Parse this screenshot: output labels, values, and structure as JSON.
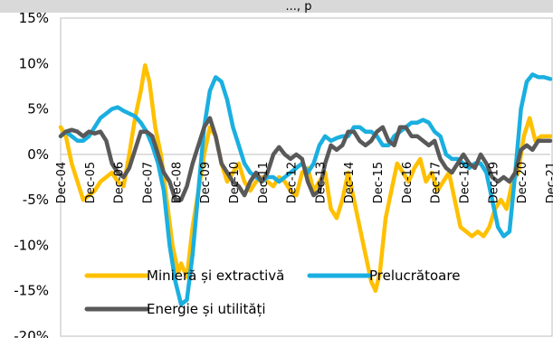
{
  "chart_data": {
    "type": "line",
    "title": "..., p",
    "ylim": [
      -20,
      15
    ],
    "y_ticks": [
      "15%",
      "10%",
      "5%",
      "0%",
      "-5%",
      "-10%",
      "-15%",
      "-20%"
    ],
    "y_tick_values": [
      15,
      10,
      5,
      0,
      -5,
      -10,
      -15,
      -20
    ],
    "x_tick_labels": [
      "Dec-04",
      "Dec-05",
      "Dec-06",
      "Dec-07",
      "Dec-08",
      "Dec-09",
      "Dec-10",
      "Dec-11",
      "Dec-12",
      "Dec-13",
      "Dec-14",
      "Dec-15",
      "Dec-16",
      "Dec-17",
      "Dec-18",
      "Dec-19",
      "Dec-20",
      "Dec-21"
    ],
    "x_range": [
      2004.917,
      2021.917
    ],
    "grid": false,
    "legend_position": "bottom inside",
    "series": [
      {
        "name": "Minieră și extractivă",
        "color": "#FFC000",
        "points": [
          [
            2004.917,
            3
          ],
          [
            2005.1,
            2
          ],
          [
            2005.3,
            -1
          ],
          [
            2005.5,
            -3
          ],
          [
            2005.7,
            -5
          ],
          [
            2005.9,
            -4.5
          ],
          [
            2006.1,
            -4
          ],
          [
            2006.3,
            -3
          ],
          [
            2006.5,
            -2.5
          ],
          [
            2006.7,
            -2
          ],
          [
            2006.9,
            -3
          ],
          [
            2007.1,
            -3.5
          ],
          [
            2007.3,
            0
          ],
          [
            2007.5,
            4
          ],
          [
            2007.7,
            7
          ],
          [
            2007.85,
            9.8
          ],
          [
            2008.0,
            8
          ],
          [
            2008.2,
            3
          ],
          [
            2008.4,
            0
          ],
          [
            2008.6,
            -5
          ],
          [
            2008.8,
            -10
          ],
          [
            2009.0,
            -13
          ],
          [
            2009.1,
            -12
          ],
          [
            2009.3,
            -13.5
          ],
          [
            2009.5,
            -8
          ],
          [
            2009.7,
            -4
          ],
          [
            2009.9,
            0
          ],
          [
            2010.1,
            3
          ],
          [
            2010.3,
            2
          ],
          [
            2010.5,
            -1
          ],
          [
            2010.7,
            -3
          ],
          [
            2010.9,
            -2
          ],
          [
            2011.1,
            -1
          ],
          [
            2011.3,
            -3
          ],
          [
            2011.5,
            -4
          ],
          [
            2011.7,
            -3
          ],
          [
            2011.9,
            -2.5
          ],
          [
            2012.1,
            -3
          ],
          [
            2012.3,
            -3.5
          ],
          [
            2012.5,
            -2.5
          ],
          [
            2012.7,
            -3
          ],
          [
            2012.9,
            -4
          ],
          [
            2013.1,
            -4.5
          ],
          [
            2013.3,
            -2
          ],
          [
            2013.5,
            -1.5
          ],
          [
            2013.7,
            -4
          ],
          [
            2013.9,
            -3
          ],
          [
            2014.1,
            -2
          ],
          [
            2014.3,
            -6
          ],
          [
            2014.5,
            -7
          ],
          [
            2014.7,
            -5
          ],
          [
            2014.9,
            -2
          ],
          [
            2015.1,
            -5
          ],
          [
            2015.3,
            -8
          ],
          [
            2015.5,
            -11
          ],
          [
            2015.7,
            -14
          ],
          [
            2015.85,
            -15
          ],
          [
            2016.0,
            -13
          ],
          [
            2016.2,
            -7
          ],
          [
            2016.4,
            -4
          ],
          [
            2016.6,
            -1
          ],
          [
            2016.8,
            -2
          ],
          [
            2017.0,
            -3
          ],
          [
            2017.2,
            -1.5
          ],
          [
            2017.4,
            -0.5
          ],
          [
            2017.6,
            -3
          ],
          [
            2017.8,
            -2
          ],
          [
            2018.0,
            -4
          ],
          [
            2018.2,
            -3
          ],
          [
            2018.4,
            -2
          ],
          [
            2018.6,
            -5
          ],
          [
            2018.8,
            -8
          ],
          [
            2019.0,
            -8.5
          ],
          [
            2019.2,
            -9
          ],
          [
            2019.4,
            -8.5
          ],
          [
            2019.6,
            -9
          ],
          [
            2019.8,
            -8
          ],
          [
            2020.0,
            -6
          ],
          [
            2020.2,
            -5
          ],
          [
            2020.4,
            -6
          ],
          [
            2020.6,
            -3
          ],
          [
            2020.8,
            -2
          ],
          [
            2021.0,
            2
          ],
          [
            2021.2,
            4
          ],
          [
            2021.4,
            1.5
          ],
          [
            2021.6,
            2
          ],
          [
            2021.917,
            2
          ]
        ]
      },
      {
        "name": "Prelucrătoare",
        "color": "#1AAFE0",
        "points": [
          [
            2004.917,
            2
          ],
          [
            2005.1,
            2.5
          ],
          [
            2005.3,
            2
          ],
          [
            2005.5,
            1.5
          ],
          [
            2005.7,
            1.5
          ],
          [
            2005.9,
            2
          ],
          [
            2006.1,
            3
          ],
          [
            2006.3,
            4
          ],
          [
            2006.5,
            4.5
          ],
          [
            2006.7,
            5
          ],
          [
            2006.9,
            5.2
          ],
          [
            2007.1,
            4.8
          ],
          [
            2007.3,
            4.5
          ],
          [
            2007.5,
            4.2
          ],
          [
            2007.7,
            3.5
          ],
          [
            2007.9,
            2.5
          ],
          [
            2008.1,
            1
          ],
          [
            2008.3,
            -1
          ],
          [
            2008.5,
            -4
          ],
          [
            2008.7,
            -10
          ],
          [
            2008.9,
            -14
          ],
          [
            2009.1,
            -16.5
          ],
          [
            2009.3,
            -16
          ],
          [
            2009.5,
            -11
          ],
          [
            2009.7,
            -4
          ],
          [
            2009.9,
            3
          ],
          [
            2010.1,
            7
          ],
          [
            2010.3,
            8.5
          ],
          [
            2010.5,
            8
          ],
          [
            2010.7,
            6
          ],
          [
            2010.9,
            3
          ],
          [
            2011.1,
            1
          ],
          [
            2011.3,
            -1
          ],
          [
            2011.5,
            -2
          ],
          [
            2011.7,
            -2.5
          ],
          [
            2011.9,
            -3
          ],
          [
            2012.1,
            -2.5
          ],
          [
            2012.3,
            -2.5
          ],
          [
            2012.5,
            -3
          ],
          [
            2012.7,
            -2.5
          ],
          [
            2012.9,
            -2
          ],
          [
            2013.1,
            -1.5
          ],
          [
            2013.3,
            -1
          ],
          [
            2013.5,
            -2
          ],
          [
            2013.7,
            -1
          ],
          [
            2013.9,
            1
          ],
          [
            2014.1,
            2
          ],
          [
            2014.3,
            1.5
          ],
          [
            2014.5,
            1.8
          ],
          [
            2014.7,
            2
          ],
          [
            2014.9,
            2
          ],
          [
            2015.1,
            3
          ],
          [
            2015.3,
            3
          ],
          [
            2015.5,
            2.5
          ],
          [
            2015.7,
            2.5
          ],
          [
            2015.9,
            2
          ],
          [
            2016.1,
            1
          ],
          [
            2016.3,
            1
          ],
          [
            2016.5,
            2
          ],
          [
            2016.7,
            2.5
          ],
          [
            2016.9,
            3
          ],
          [
            2017.1,
            3.5
          ],
          [
            2017.3,
            3.5
          ],
          [
            2017.5,
            3.8
          ],
          [
            2017.7,
            3.5
          ],
          [
            2017.9,
            2.5
          ],
          [
            2018.1,
            2
          ],
          [
            2018.3,
            0
          ],
          [
            2018.5,
            -0.5
          ],
          [
            2018.7,
            -0.5
          ],
          [
            2018.9,
            -1
          ],
          [
            2019.1,
            -1.5
          ],
          [
            2019.3,
            -1
          ],
          [
            2019.5,
            -1
          ],
          [
            2019.7,
            -2
          ],
          [
            2019.9,
            -5
          ],
          [
            2020.1,
            -8
          ],
          [
            2020.3,
            -9
          ],
          [
            2020.5,
            -8.5
          ],
          [
            2020.7,
            -2
          ],
          [
            2020.9,
            5
          ],
          [
            2021.1,
            8
          ],
          [
            2021.3,
            8.8
          ],
          [
            2021.5,
            8.5
          ],
          [
            2021.7,
            8.5
          ],
          [
            2021.917,
            8.3
          ]
        ]
      },
      {
        "name": "Energie și utilități",
        "color": "#595959",
        "points": [
          [
            2004.917,
            2
          ],
          [
            2005.1,
            2.5
          ],
          [
            2005.3,
            2.7
          ],
          [
            2005.5,
            2.5
          ],
          [
            2005.7,
            2
          ],
          [
            2005.9,
            2.5
          ],
          [
            2006.1,
            2.3
          ],
          [
            2006.3,
            2.5
          ],
          [
            2006.5,
            1.5
          ],
          [
            2006.7,
            -1
          ],
          [
            2006.9,
            -2
          ],
          [
            2007.1,
            -2.5
          ],
          [
            2007.3,
            -1.5
          ],
          [
            2007.5,
            0.5
          ],
          [
            2007.7,
            2.5
          ],
          [
            2007.9,
            2.5
          ],
          [
            2008.1,
            2
          ],
          [
            2008.3,
            0
          ],
          [
            2008.5,
            -2
          ],
          [
            2008.7,
            -3
          ],
          [
            2008.9,
            -5
          ],
          [
            2009.1,
            -5
          ],
          [
            2009.3,
            -3.5
          ],
          [
            2009.5,
            -1
          ],
          [
            2009.7,
            1
          ],
          [
            2009.9,
            3
          ],
          [
            2010.1,
            4
          ],
          [
            2010.3,
            2
          ],
          [
            2010.5,
            -1
          ],
          [
            2010.7,
            -2
          ],
          [
            2010.9,
            -3
          ],
          [
            2011.1,
            -3.5
          ],
          [
            2011.3,
            -4.5
          ],
          [
            2011.5,
            -3
          ],
          [
            2011.7,
            -2
          ],
          [
            2011.9,
            -3
          ],
          [
            2012.1,
            -2
          ],
          [
            2012.3,
            0
          ],
          [
            2012.5,
            0.8
          ],
          [
            2012.7,
            0
          ],
          [
            2012.9,
            -0.5
          ],
          [
            2013.1,
            0
          ],
          [
            2013.3,
            -0.5
          ],
          [
            2013.5,
            -3
          ],
          [
            2013.7,
            -4.5
          ],
          [
            2013.9,
            -4
          ],
          [
            2014.1,
            -1
          ],
          [
            2014.3,
            1
          ],
          [
            2014.5,
            0.5
          ],
          [
            2014.7,
            1
          ],
          [
            2014.9,
            2.5
          ],
          [
            2015.1,
            2.5
          ],
          [
            2015.3,
            1.5
          ],
          [
            2015.5,
            1
          ],
          [
            2015.7,
            1.5
          ],
          [
            2015.9,
            2.5
          ],
          [
            2016.1,
            3
          ],
          [
            2016.3,
            1.5
          ],
          [
            2016.5,
            1
          ],
          [
            2016.7,
            3
          ],
          [
            2016.9,
            3
          ],
          [
            2017.1,
            2
          ],
          [
            2017.3,
            2
          ],
          [
            2017.5,
            1.5
          ],
          [
            2017.7,
            1
          ],
          [
            2017.9,
            1.5
          ],
          [
            2018.1,
            -0.5
          ],
          [
            2018.3,
            -1.5
          ],
          [
            2018.5,
            -2
          ],
          [
            2018.7,
            -1
          ],
          [
            2018.9,
            0
          ],
          [
            2019.1,
            -1
          ],
          [
            2019.3,
            -1.5
          ],
          [
            2019.5,
            0
          ],
          [
            2019.7,
            -1
          ],
          [
            2019.9,
            -2.5
          ],
          [
            2020.1,
            -3
          ],
          [
            2020.3,
            -2.5
          ],
          [
            2020.5,
            -3
          ],
          [
            2020.7,
            -2
          ],
          [
            2020.9,
            0.5
          ],
          [
            2021.1,
            1
          ],
          [
            2021.3,
            0.5
          ],
          [
            2021.5,
            1.5
          ],
          [
            2021.7,
            1.5
          ],
          [
            2021.917,
            1.5
          ]
        ]
      }
    ]
  }
}
